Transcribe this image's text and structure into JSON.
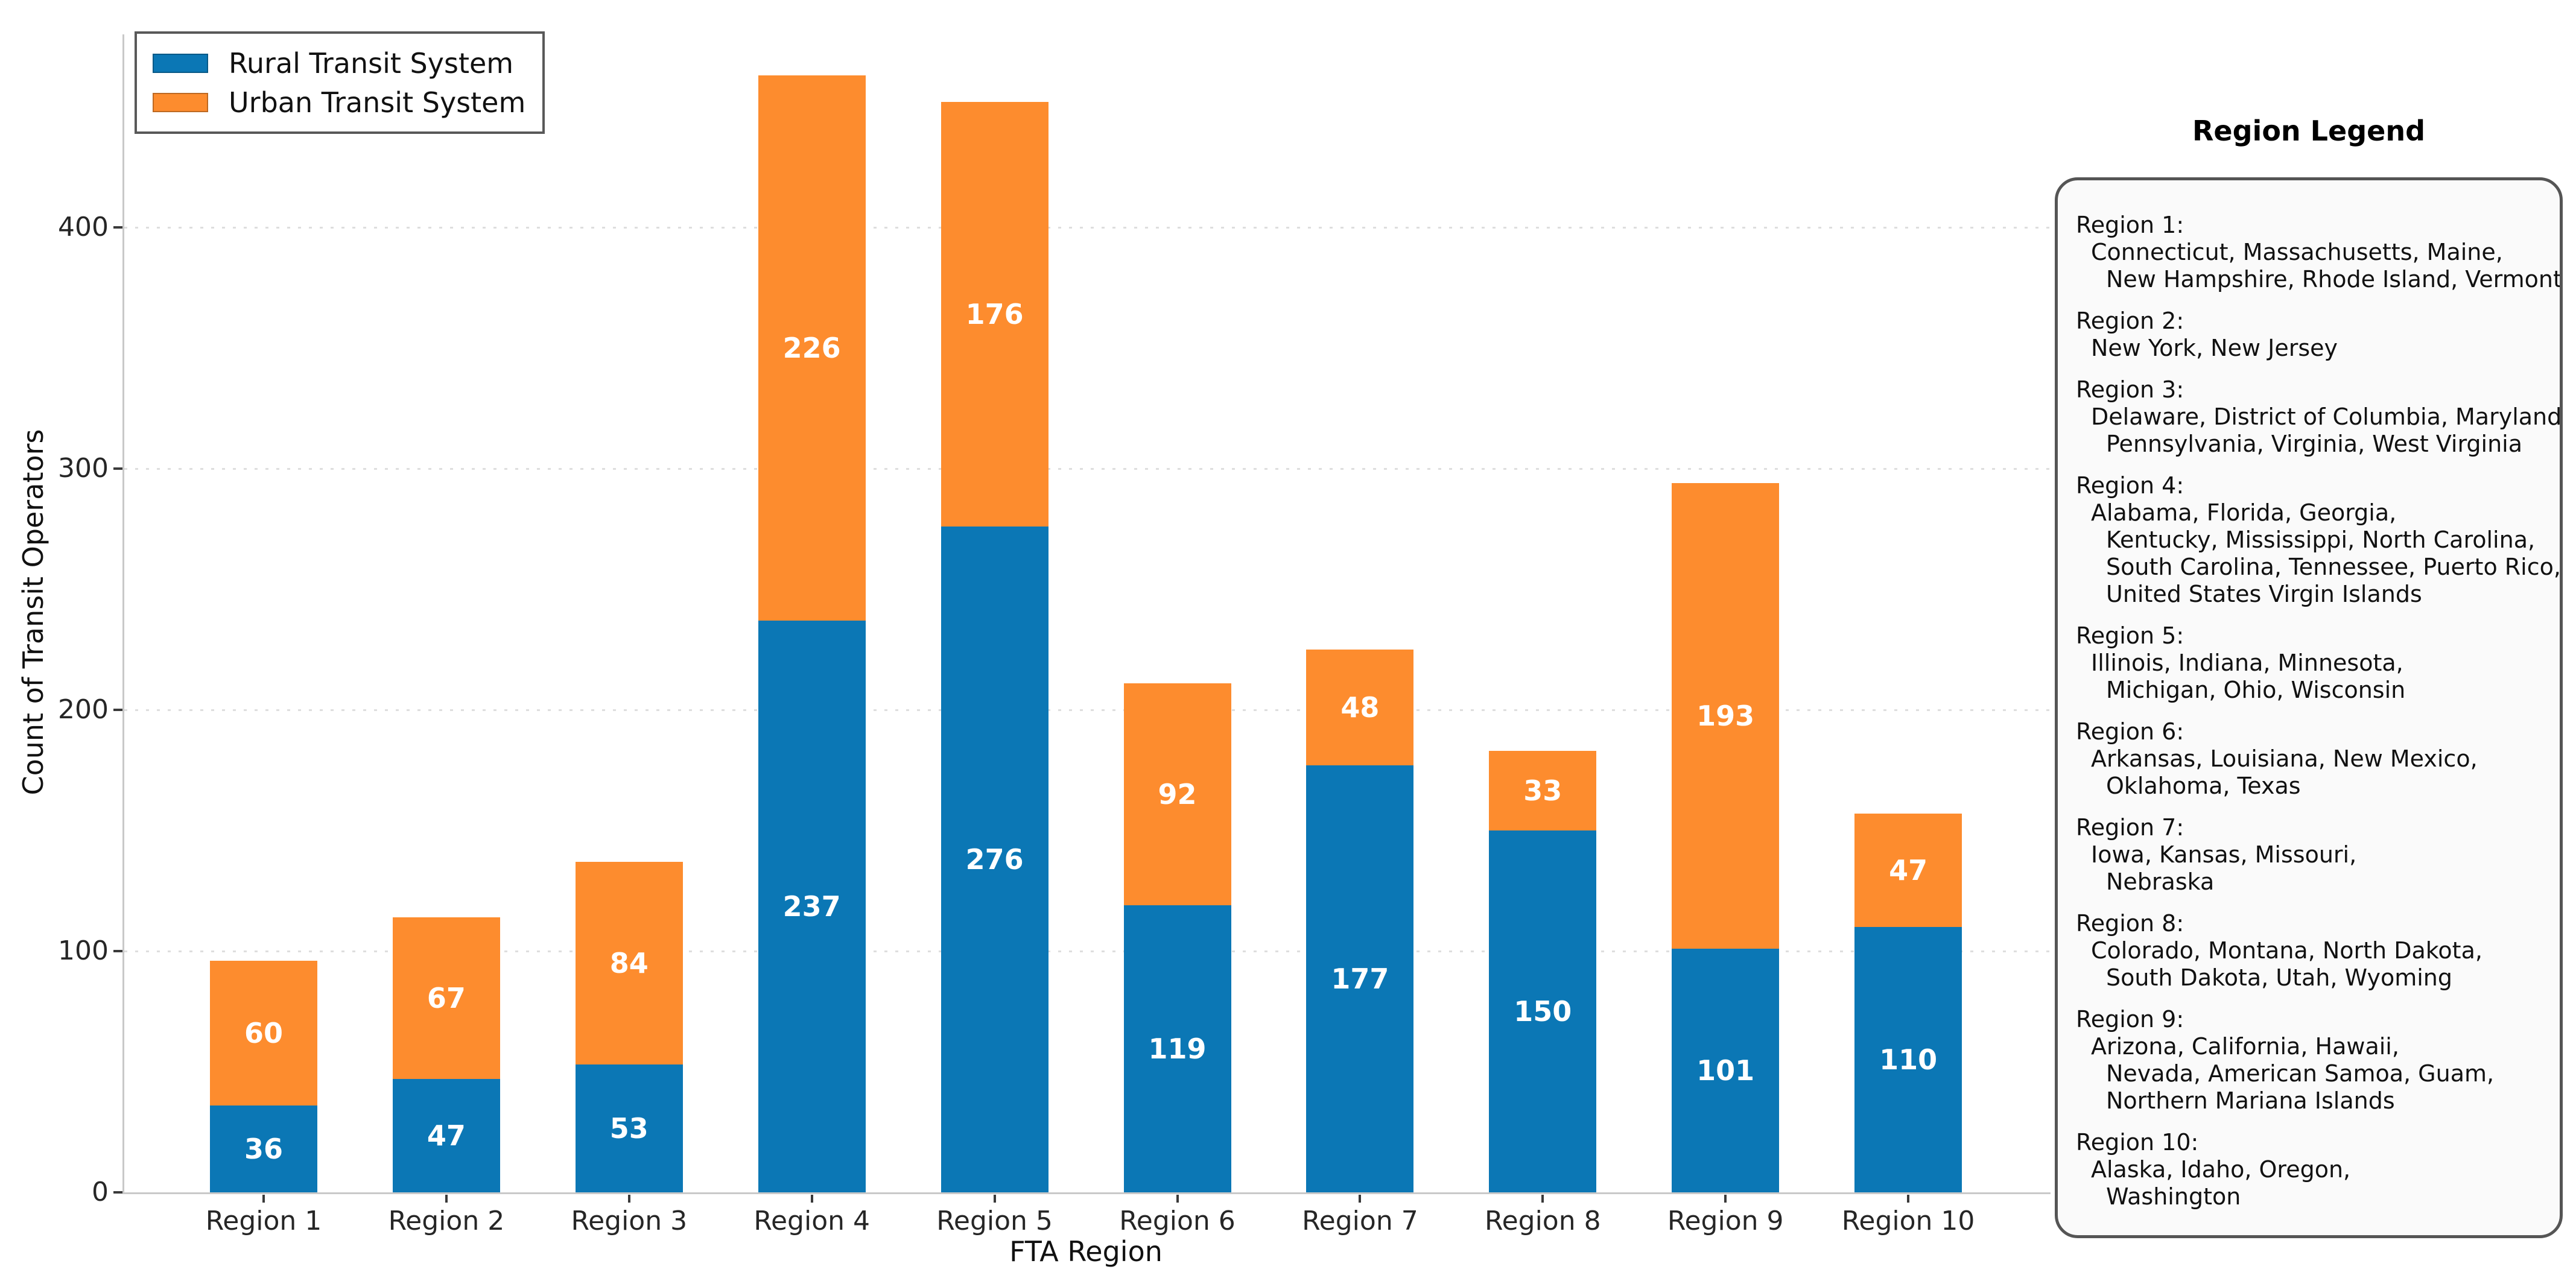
{
  "chart_data": {
    "type": "bar",
    "stacked": true,
    "title": "",
    "xlabel": "FTA Region",
    "ylabel": "Count of Transit Operators",
    "categories": [
      "Region 1",
      "Region 2",
      "Region 3",
      "Region 4",
      "Region 5",
      "Region 6",
      "Region 7",
      "Region 8",
      "Region 9",
      "Region 10"
    ],
    "series": [
      {
        "name": "Rural Transit System",
        "color": "#0b77b5",
        "values": [
          36,
          47,
          53,
          237,
          276,
          119,
          177,
          150,
          101,
          110
        ]
      },
      {
        "name": "Urban Transit System",
        "color": "#fd8c2e",
        "values": [
          60,
          67,
          84,
          226,
          176,
          92,
          48,
          33,
          193,
          47
        ]
      }
    ],
    "totals": [
      96,
      114,
      137,
      463,
      452,
      211,
      225,
      183,
      294,
      157
    ],
    "yticks": [
      0,
      100,
      200,
      300,
      400
    ],
    "ylim": [
      0,
      480
    ],
    "grid": "horizontal-dotted",
    "legend_position": "upper-left",
    "bar_label_color": "#ffffff"
  },
  "region_legend": {
    "title": "Region Legend",
    "entries": [
      {
        "region": "Region 1:",
        "lines": [
          "Connecticut, Massachusetts, Maine,",
          "New Hampshire, Rhode Island, Vermont"
        ]
      },
      {
        "region": "Region 2:",
        "lines": [
          "New York, New Jersey"
        ]
      },
      {
        "region": "Region 3:",
        "lines": [
          "Delaware, District of Columbia, Maryland,",
          "Pennsylvania, Virginia, West Virginia"
        ]
      },
      {
        "region": "Region 4:",
        "lines": [
          "Alabama, Florida, Georgia,",
          "Kentucky, Mississippi, North Carolina,",
          "South Carolina, Tennessee, Puerto Rico,",
          "United States Virgin Islands"
        ]
      },
      {
        "region": "Region 5:",
        "lines": [
          "Illinois, Indiana, Minnesota,",
          "Michigan, Ohio, Wisconsin"
        ]
      },
      {
        "region": "Region 6:",
        "lines": [
          "Arkansas, Louisiana, New Mexico,",
          "Oklahoma, Texas"
        ]
      },
      {
        "region": "Region 7:",
        "lines": [
          "Iowa, Kansas, Missouri,",
          "Nebraska"
        ]
      },
      {
        "region": "Region 8:",
        "lines": [
          "Colorado, Montana, North Dakota,",
          "South Dakota, Utah, Wyoming"
        ]
      },
      {
        "region": "Region 9:",
        "lines": [
          "Arizona, California, Hawaii,",
          "Nevada, American Samoa, Guam,",
          "Northern Mariana Islands"
        ]
      },
      {
        "region": "Region 10:",
        "lines": [
          "Alaska, Idaho, Oregon,",
          "Washington"
        ]
      }
    ]
  }
}
